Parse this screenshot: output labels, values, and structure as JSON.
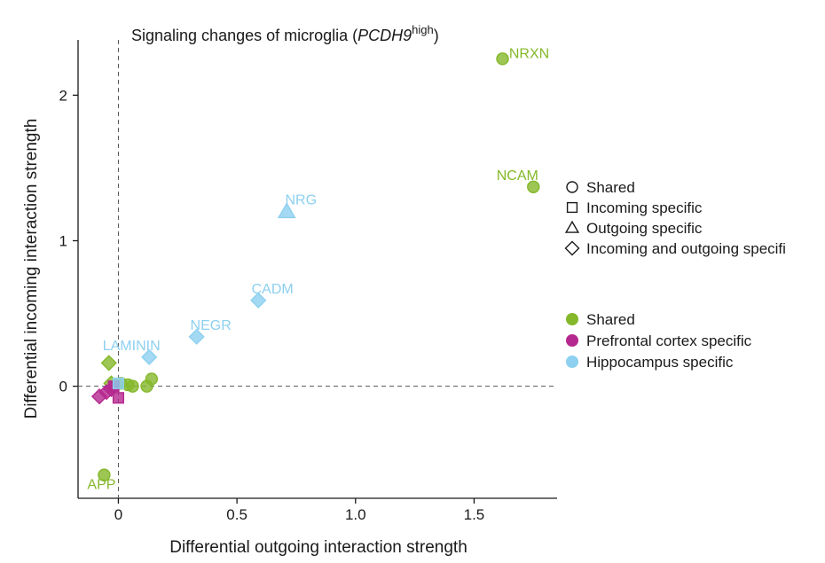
{
  "panel_label": "|",
  "chart_data": {
    "type": "scatter",
    "title": {
      "prefix": "Signaling changes of microglia (",
      "gene": "PCDH9",
      "superscript": "high",
      "suffix": ")"
    },
    "xlabel": "Differential outgoing interaction strength",
    "ylabel": "Differential incoming interaction strength",
    "xlim": [
      -0.17,
      1.85
    ],
    "ylim": [
      -0.77,
      2.38
    ],
    "xticks": [
      0,
      0.5,
      1.0,
      1.5
    ],
    "xtick_labels": [
      "0",
      "0.5",
      "1.0",
      "1.5"
    ],
    "yticks": [
      0,
      1,
      2
    ],
    "ytick_labels": [
      "0",
      "1",
      "2"
    ],
    "reference_lines": {
      "x": 0,
      "y": 0,
      "style": "dashed"
    },
    "colors": {
      "Shared": "#84b82a",
      "Prefrontal cortex specific": "#b5288f",
      "Hippocampus specific": "#8dd0f0"
    },
    "shape_legend": [
      "Shared",
      "Incoming specific",
      "Outgoing specific",
      "Incoming and outgoing specifi"
    ],
    "color_legend": [
      "Shared",
      "Prefrontal cortex  specific",
      "Hippocampus specific"
    ],
    "points": [
      {
        "label": "NRXN",
        "x": 1.62,
        "y": 2.25,
        "shape": "circle",
        "group": "Shared"
      },
      {
        "label": "NCAM",
        "x": 1.75,
        "y": 1.37,
        "shape": "circle",
        "group": "Shared"
      },
      {
        "label": "NRG",
        "x": 0.71,
        "y": 1.2,
        "shape": "triangle",
        "group": "Hippocampus specific"
      },
      {
        "label": "CADM",
        "x": 0.59,
        "y": 0.59,
        "shape": "diamond",
        "group": "Hippocampus specific"
      },
      {
        "label": "NEGR",
        "x": 0.33,
        "y": 0.34,
        "shape": "diamond",
        "group": "Hippocampus specific"
      },
      {
        "label": "LAMININ",
        "x": 0.13,
        "y": 0.2,
        "shape": "diamond",
        "group": "Hippocampus specific"
      },
      {
        "label": "APP",
        "x": -0.06,
        "y": -0.61,
        "shape": "circle",
        "group": "Shared"
      },
      {
        "label": "",
        "x": -0.04,
        "y": 0.16,
        "shape": "diamond",
        "group": "Shared"
      },
      {
        "label": "",
        "x": 0.14,
        "y": 0.05,
        "shape": "circle",
        "group": "Shared"
      },
      {
        "label": "",
        "x": 0.12,
        "y": 0.0,
        "shape": "circle",
        "group": "Shared"
      },
      {
        "label": "",
        "x": 0.06,
        "y": 0.0,
        "shape": "circle",
        "group": "Shared"
      },
      {
        "label": "",
        "x": 0.04,
        "y": 0.01,
        "shape": "circle",
        "group": "Shared"
      },
      {
        "label": "",
        "x": 0.01,
        "y": 0.02,
        "shape": "circle",
        "group": "Shared"
      },
      {
        "label": "",
        "x": -0.03,
        "y": 0.02,
        "shape": "diamond",
        "group": "Shared"
      },
      {
        "label": "",
        "x": -0.08,
        "y": -0.07,
        "shape": "diamond",
        "group": "Prefrontal cortex specific"
      },
      {
        "label": "",
        "x": -0.05,
        "y": -0.04,
        "shape": "diamond",
        "group": "Prefrontal cortex specific"
      },
      {
        "label": "",
        "x": -0.03,
        "y": -0.02,
        "shape": "diamond",
        "group": "Prefrontal cortex specific"
      },
      {
        "label": "",
        "x": 0.0,
        "y": -0.08,
        "shape": "square",
        "group": "Prefrontal cortex specific"
      },
      {
        "label": "",
        "x": -0.02,
        "y": 0.0,
        "shape": "square",
        "group": "Prefrontal cortex specific"
      },
      {
        "label": "",
        "x": 0.0,
        "y": 0.02,
        "shape": "square",
        "group": "Hippocampus specific"
      }
    ]
  }
}
